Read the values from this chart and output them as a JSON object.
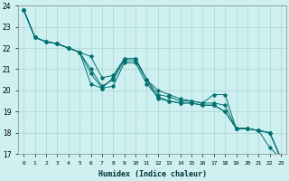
{
  "xlabel": "Humidex (Indice chaleur)",
  "bg_color": "#cff0f0",
  "grid_color": "#b0d8d8",
  "line_color": "#007070",
  "xlim": [
    -0.5,
    23.5
  ],
  "ylim": [
    17,
    24
  ],
  "xticks": [
    0,
    1,
    2,
    3,
    4,
    5,
    6,
    7,
    8,
    9,
    10,
    11,
    12,
    13,
    14,
    15,
    16,
    17,
    18,
    19,
    20,
    21,
    22,
    23
  ],
  "yticks": [
    17,
    18,
    19,
    20,
    21,
    22,
    23,
    24
  ],
  "series": [
    [
      23.8,
      22.5,
      22.3,
      22.2,
      22.0,
      21.8,
      21.0,
      20.2,
      20.5,
      21.4,
      21.4,
      20.5,
      19.6,
      19.5,
      19.4,
      19.4,
      19.3,
      19.3,
      19.0,
      18.2,
      18.2,
      18.1,
      18.0,
      16.8
    ],
    [
      23.8,
      22.5,
      22.3,
      22.2,
      22.0,
      21.8,
      20.8,
      20.1,
      20.2,
      21.3,
      21.3,
      20.3,
      19.7,
      19.5,
      19.4,
      19.4,
      19.3,
      19.3,
      19.0,
      18.2,
      18.2,
      18.1,
      17.3,
      16.8
    ],
    [
      23.8,
      22.5,
      22.3,
      22.2,
      22.0,
      21.8,
      20.3,
      20.1,
      20.6,
      21.5,
      21.5,
      20.5,
      19.8,
      19.7,
      19.5,
      19.5,
      19.4,
      19.8,
      19.8,
      18.2,
      18.2,
      18.1,
      18.0,
      16.8
    ],
    [
      23.8,
      22.5,
      22.3,
      22.2,
      22.0,
      21.8,
      21.6,
      20.6,
      20.7,
      21.5,
      21.5,
      20.5,
      20.0,
      19.8,
      19.6,
      19.5,
      19.4,
      19.4,
      19.3,
      18.2,
      18.2,
      18.1,
      18.0,
      16.8
    ]
  ]
}
